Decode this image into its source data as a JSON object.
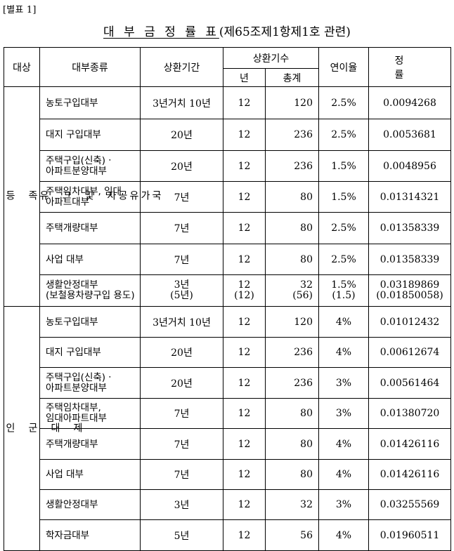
{
  "doc_tag": "[별표 1]",
  "title": {
    "main": "대 부 금 정 률 표",
    "sub": "(제65조제1항제1호 관련)"
  },
  "headers": {
    "target": "대상",
    "loan_type": "대부종류",
    "period": "상환기간",
    "installments": "상환기수",
    "per_year": "년",
    "total": "총계",
    "annual_rate": "연이율",
    "factor": "정 률"
  },
  "groups": [
    {
      "label": "국가유공자 및 그 유족 등",
      "vertical_label": "국\n가\n유\n공\n자\n\n및\n\n그\n\n유\n족\n\n등",
      "rows": [
        {
          "type": "농토구입대부",
          "type2": "",
          "period": "3년거치 10년",
          "period2": "",
          "year": "12",
          "year2": "",
          "total": "120",
          "total2": "",
          "rate": "2.5%",
          "rate2": "",
          "factor": "0.0094268",
          "factor2": ""
        },
        {
          "type": "대지 구입대부",
          "type2": "",
          "period": "20년",
          "period2": "",
          "year": "12",
          "year2": "",
          "total": "236",
          "total2": "",
          "rate": "2.5%",
          "rate2": "",
          "factor": "0.0053681",
          "factor2": ""
        },
        {
          "type": "주택구입(신축)ㆍ",
          "type2": "아파트분양대부",
          "period": "20년",
          "period2": "",
          "year": "12",
          "year2": "",
          "total": "236",
          "total2": "",
          "rate": "1.5%",
          "rate2": "",
          "factor": "0.0048956",
          "factor2": ""
        },
        {
          "type": "주택임차대부, 임대",
          "type2": "아파트대부",
          "period": "7년",
          "period2": "",
          "year": "12",
          "year2": "",
          "total": "80",
          "total2": "",
          "rate": "1.5%",
          "rate2": "",
          "factor": "0.01314321",
          "factor2": ""
        },
        {
          "type": "주택개량대부",
          "type2": "",
          "period": "7년",
          "period2": "",
          "year": "12",
          "year2": "",
          "total": "80",
          "total2": "",
          "rate": "2.5%",
          "rate2": "",
          "factor": "0.01358339",
          "factor2": ""
        },
        {
          "type": "사업 대부",
          "type2": "",
          "period": "7년",
          "period2": "",
          "year": "12",
          "year2": "",
          "total": "80",
          "total2": "",
          "rate": "2.5%",
          "rate2": "",
          "factor": "0.01358339",
          "factor2": ""
        },
        {
          "type": "생활안정대부",
          "type2": "(보철용차량구입 용도)",
          "period": "3년",
          "period2": "(5년)",
          "year": "12",
          "year2": "(12)",
          "total": "32",
          "total2": "(56)",
          "rate": "1.5%",
          "rate2": "(1.5)",
          "factor": "0.03189869",
          "factor2": "(0.01850058)"
        }
      ]
    },
    {
      "label": "제대군인",
      "vertical_label": "제\n\n대\n\n군\n\n인",
      "rows": [
        {
          "type": "농토구입대부",
          "type2": "",
          "period": "3년거치 10년",
          "period2": "",
          "year": "12",
          "year2": "",
          "total": "120",
          "total2": "",
          "rate": "4%",
          "rate2": "",
          "factor": "0.01012432",
          "factor2": ""
        },
        {
          "type": "대지 구입대부",
          "type2": "",
          "period": "20년",
          "period2": "",
          "year": "12",
          "year2": "",
          "total": "236",
          "total2": "",
          "rate": "4%",
          "rate2": "",
          "factor": "0.00612674",
          "factor2": ""
        },
        {
          "type": "주택구입(신축)ㆍ",
          "type2": "아파트분양대부",
          "period": "20년",
          "period2": "",
          "year": "12",
          "year2": "",
          "total": "236",
          "total2": "",
          "rate": "3%",
          "rate2": "",
          "factor": "0.00561464",
          "factor2": ""
        },
        {
          "type": "주택임차대부,",
          "type2": "임대아파트대부",
          "period": "7년",
          "period2": "",
          "year": "12",
          "year2": "",
          "total": "80",
          "total2": "",
          "rate": "3%",
          "rate2": "",
          "factor": "0.01380720",
          "factor2": ""
        },
        {
          "type": "주택개량대부",
          "type2": "",
          "period": "7년",
          "period2": "",
          "year": "12",
          "year2": "",
          "total": "80",
          "total2": "",
          "rate": "4%",
          "rate2": "",
          "factor": "0.01426116",
          "factor2": ""
        },
        {
          "type": "사업 대부",
          "type2": "",
          "period": "7년",
          "period2": "",
          "year": "12",
          "year2": "",
          "total": "80",
          "total2": "",
          "rate": "4%",
          "rate2": "",
          "factor": "0.01426116",
          "factor2": ""
        },
        {
          "type": "생활안정대부",
          "type2": "",
          "period": "3년",
          "period2": "",
          "year": "12",
          "year2": "",
          "total": "32",
          "total2": "",
          "rate": "3%",
          "rate2": "",
          "factor": "0.03255569",
          "factor2": ""
        },
        {
          "type": "학자금대부",
          "type2": "",
          "period": "5년",
          "period2": "",
          "year": "12",
          "year2": "",
          "total": "56",
          "total2": "",
          "rate": "4%",
          "rate2": "",
          "factor": "0.01960511",
          "factor2": ""
        }
      ]
    }
  ]
}
